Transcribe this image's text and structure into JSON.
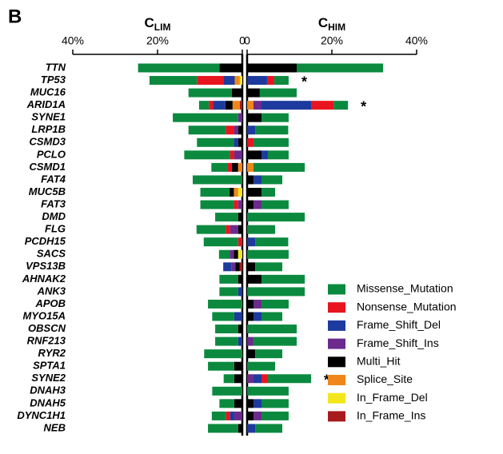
{
  "chart_data": {
    "type": "bar",
    "label": "B",
    "categories": [
      "TTN",
      "TP53",
      "MUC16",
      "ARID1A",
      "SYNE1",
      "LRP1B",
      "CSMD3",
      "PCLO",
      "CSMD1",
      "FAT4",
      "MUC5B",
      "FAT3",
      "DMD",
      "FLG",
      "PCDH15",
      "SACS",
      "VPS13B",
      "AHNAK2",
      "ANK3",
      "APOB",
      "MYO15A",
      "OBSCN",
      "RNF213",
      "RYR2",
      "SPTA1",
      "SYNE2",
      "DNAH3",
      "DNAH5",
      "DYNC1H1",
      "NEB"
    ],
    "xlim": [
      0,
      40
    ],
    "xticks": [
      {
        "value": 40,
        "label": "40%"
      },
      {
        "value": 20,
        "label": "20%"
      },
      0
    ],
    "series": [
      {
        "name": "Missense_Mutation",
        "color": "#0b8a3f"
      },
      {
        "name": "Nonsense_Mutation",
        "color": "#e8141f"
      },
      {
        "name": "Frame_Shift_Del",
        "color": "#1d3a9e"
      },
      {
        "name": "Frame_Shift_Ins",
        "color": "#6b2a8c"
      },
      {
        "name": "Multi_Hit",
        "color": "#000000"
      },
      {
        "name": "Splice_Site",
        "color": "#f0861a"
      },
      {
        "name": "In_Frame_Del",
        "color": "#f3e61c"
      },
      {
        "name": "In_Frame_Ins",
        "color": "#a81b1b"
      }
    ],
    "panels": [
      {
        "title": "C",
        "subscript": "LIM",
        "direction": "left",
        "series": [
          {
            "values": [
              19.2,
              11.2,
              10.2,
              2.3,
              15.4,
              8.8,
              8.7,
              10.8,
              3.8,
              11.7,
              6.9,
              7.9,
              5.4,
              6.9,
              8.1,
              2.5,
              0,
              4.4,
              4.4,
              8.1,
              5.2,
              5.4,
              5.4,
              9,
              6.2,
              2.5,
              7.1,
              3.5,
              3.3,
              7.1
            ]
          },
          {
            "values": [
              0,
              6.2,
              0,
              1,
              0,
              1.9,
              0,
              1,
              1,
              0,
              0,
              1,
              0,
              1,
              1,
              0,
              0,
              0,
              0,
              0,
              0,
              0,
              0,
              0,
              0,
              0,
              0,
              0,
              1,
              0
            ]
          },
          {
            "values": [
              0,
              2.7,
              0,
              2.9,
              0,
              0,
              1,
              0,
              0,
              0,
              0,
              0,
              0,
              0,
              0,
              0,
              1.9,
              0,
              1,
              0,
              1.9,
              0,
              1,
              0,
              0,
              0,
              0,
              0,
              1,
              0
            ]
          },
          {
            "values": [
              0,
              0,
              0,
              0,
              1,
              1,
              0,
              1.9,
              0,
              0,
              0,
              1,
              0,
              1.9,
              0,
              1,
              1,
              0,
              0,
              0,
              0,
              0,
              0,
              0,
              0,
              0,
              0,
              0,
              1.9,
              0
            ]
          },
          {
            "values": [
              5.4,
              0,
              2.5,
              1.7,
              0,
              1,
              1,
              0,
              1.5,
              0,
              1,
              0,
              1,
              1,
              0,
              1,
              1,
              1,
              0,
              0,
              0,
              1,
              0,
              0,
              1.9,
              1.9,
              0,
              1.9,
              0,
              1
            ]
          },
          {
            "values": [
              0,
              1.2,
              0,
              1.7,
              0,
              0,
              0,
              0,
              1,
              0,
              1,
              0,
              0,
              0,
              0,
              0,
              0,
              0,
              0,
              0,
              0,
              0,
              0,
              0,
              0,
              0,
              0,
              0,
              0,
              0
            ]
          },
          {
            "values": [
              0,
              0.6,
              0,
              0,
              0,
              0,
              0,
              0,
              0,
              0,
              1,
              0,
              0,
              0,
              0,
              1,
              0,
              0,
              0,
              0,
              0,
              0,
              0,
              0,
              0,
              0,
              0,
              0,
              0,
              0
            ]
          },
          {
            "values": [
              0,
              0,
              0,
              0.6,
              0,
              0,
              0,
              0,
              0,
              0,
              0,
              0,
              0,
              0,
              0,
              0,
              0.6,
              0,
              0,
              0,
              0,
              0,
              0,
              0,
              0,
              0,
              0,
              0,
              0,
              0
            ]
          }
        ]
      },
      {
        "title": "C",
        "subscript": "HIM",
        "direction": "right",
        "series": [
          {
            "values": [
              20.4,
              3.4,
              8.7,
              3.4,
              6.4,
              7.8,
              8.3,
              4.9,
              12.1,
              4.9,
              3.2,
              6.4,
              13.6,
              6.6,
              7.8,
              9.8,
              6.4,
              10.2,
              13.6,
              6.4,
              4.9,
              11.7,
              10.2,
              6.4,
              6.6,
              10.2,
              9.8,
              6.4,
              6.4,
              6.4
            ]
          },
          {
            "values": [
              0,
              1.7,
              0,
              5.3,
              0,
              0,
              1.5,
              0,
              0,
              0,
              0,
              0,
              0,
              0,
              0,
              0,
              0,
              0,
              0,
              0,
              0,
              0,
              0,
              0,
              0,
              1.5,
              0,
              0,
              0,
              0
            ]
          },
          {
            "values": [
              0,
              4.7,
              0,
              11.7,
              0,
              1.9,
              0,
              1.5,
              0,
              1.9,
              0,
              0,
              0,
              0,
              1.9,
              0,
              0,
              0,
              0,
              0,
              1.9,
              0,
              0,
              0,
              0,
              1.9,
              0,
              1.9,
              0,
              1.9
            ]
          },
          {
            "values": [
              0,
              0,
              0,
              1.9,
              0,
              0,
              0,
              0,
              0,
              0,
              0,
              1.9,
              0,
              0,
              0,
              0,
              0,
              0,
              0,
              1.9,
              0,
              0,
              1.5,
              0,
              0,
              1.5,
              0,
              0,
              1.9,
              0
            ]
          },
          {
            "values": [
              11.7,
              0,
              3,
              0,
              3.4,
              0,
              0,
              3.4,
              0,
              1.5,
              3.4,
              1.5,
              0,
              0,
              0,
              0,
              1.9,
              3.4,
              0,
              1.5,
              1.5,
              0,
              0,
              1.9,
              0,
              0,
              0,
              1.5,
              1.5,
              0
            ]
          },
          {
            "values": [
              0,
              0,
              0,
              1.5,
              0,
              0,
              0,
              0,
              1.5,
              0,
              0,
              0,
              0,
              0,
              0,
              0,
              0,
              0,
              0,
              0,
              0,
              0,
              0,
              0,
              0,
              0,
              0,
              0,
              0,
              0
            ]
          },
          {
            "values": [
              0,
              0,
              0,
              0,
              0,
              0,
              0,
              0,
              0,
              0,
              0,
              0,
              0,
              0,
              0,
              0,
              0,
              0,
              0,
              0,
              0,
              0,
              0,
              0,
              0,
              0,
              0,
              0,
              0,
              0
            ]
          },
          {
            "values": [
              0,
              0,
              0,
              0,
              0,
              0,
              0,
              0,
              0,
              0,
              0,
              0,
              0,
              0,
              0,
              0,
              0,
              0,
              0,
              0,
              0,
              0,
              0,
              0,
              0,
              0,
              0,
              0,
              0,
              0
            ]
          }
        ]
      }
    ],
    "annotations": [
      {
        "text": "*",
        "category": "TP53"
      },
      {
        "text": "*",
        "category": "ARID1A"
      },
      {
        "text": "*",
        "category": "SYNE2"
      }
    ]
  }
}
